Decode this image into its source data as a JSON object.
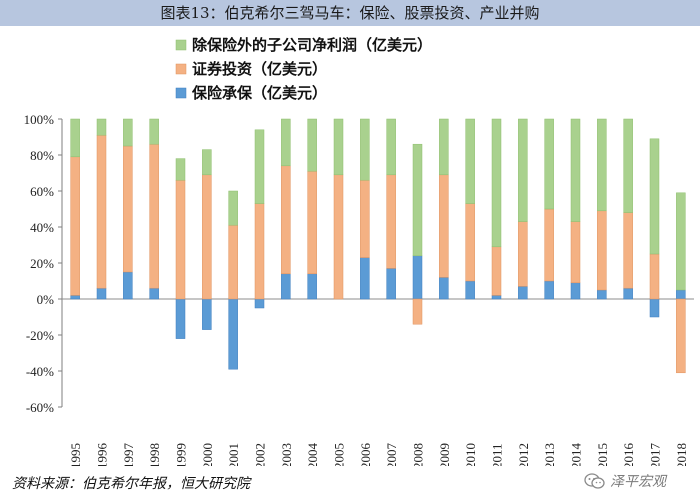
{
  "title": "图表13：伯克希尔三驾马车：保险、股票投资、产业并购",
  "source": "资料来源：伯克希尔年报，恒大研究院",
  "watermark": "泽平宏观",
  "watermark_icon": "wechat-icon",
  "colors": {
    "green": "#a9d18e",
    "orange": "#f4b183",
    "blue": "#5b9bd5",
    "green_stroke": "#8fbf6f",
    "orange_stroke": "#e0925e",
    "blue_stroke": "#3f7fbf",
    "title_bg": "#b7c6df"
  },
  "chart_data": {
    "type": "bar",
    "stacked": true,
    "categories": [
      "1995",
      "1996",
      "1997",
      "1998",
      "1999",
      "2000",
      "2001",
      "2002",
      "2003",
      "2004",
      "2005",
      "2006",
      "2007",
      "2008",
      "2009",
      "2010",
      "2011",
      "2012",
      "2013",
      "2014",
      "2015",
      "2016",
      "2017",
      "2018"
    ],
    "series": [
      {
        "name": "保险承保（亿美元）",
        "color": "#5b9bd5",
        "values": [
          2,
          6,
          15,
          6,
          -22,
          -17,
          -39,
          -5,
          14,
          14,
          0,
          23,
          17,
          24,
          12,
          10,
          2,
          7,
          10,
          9,
          5,
          6,
          -10,
          5
        ]
      },
      {
        "name": "证券投资（亿美元）",
        "color": "#f4b183",
        "values": [
          77,
          85,
          70,
          80,
          66,
          69,
          41,
          53,
          60,
          57,
          69,
          43,
          52,
          -14,
          57,
          43,
          27,
          36,
          40,
          34,
          44,
          42,
          25,
          -41
        ]
      },
      {
        "name": "除保险外的子公司净利润（亿美元）",
        "color": "#a9d18e",
        "values": [
          21,
          9,
          15,
          14,
          12,
          14,
          19,
          41,
          26,
          29,
          31,
          34,
          31,
          62,
          31,
          47,
          71,
          57,
          50,
          57,
          51,
          52,
          64,
          54
        ]
      }
    ],
    "legend_order": [
      "除保险外的子公司净利润（亿美元）",
      "证券投资（亿美元）",
      "保险承保（亿美元）"
    ],
    "y_ticks": [
      "100%",
      "80%",
      "60%",
      "40%",
      "20%",
      "0%",
      "-20%",
      "-40%",
      "-60%"
    ],
    "ylim": [
      -60,
      100
    ],
    "ylabel_format": "percent",
    "xlabel": "",
    "ylabel": "",
    "legend_position": "top-left",
    "grid": false
  }
}
